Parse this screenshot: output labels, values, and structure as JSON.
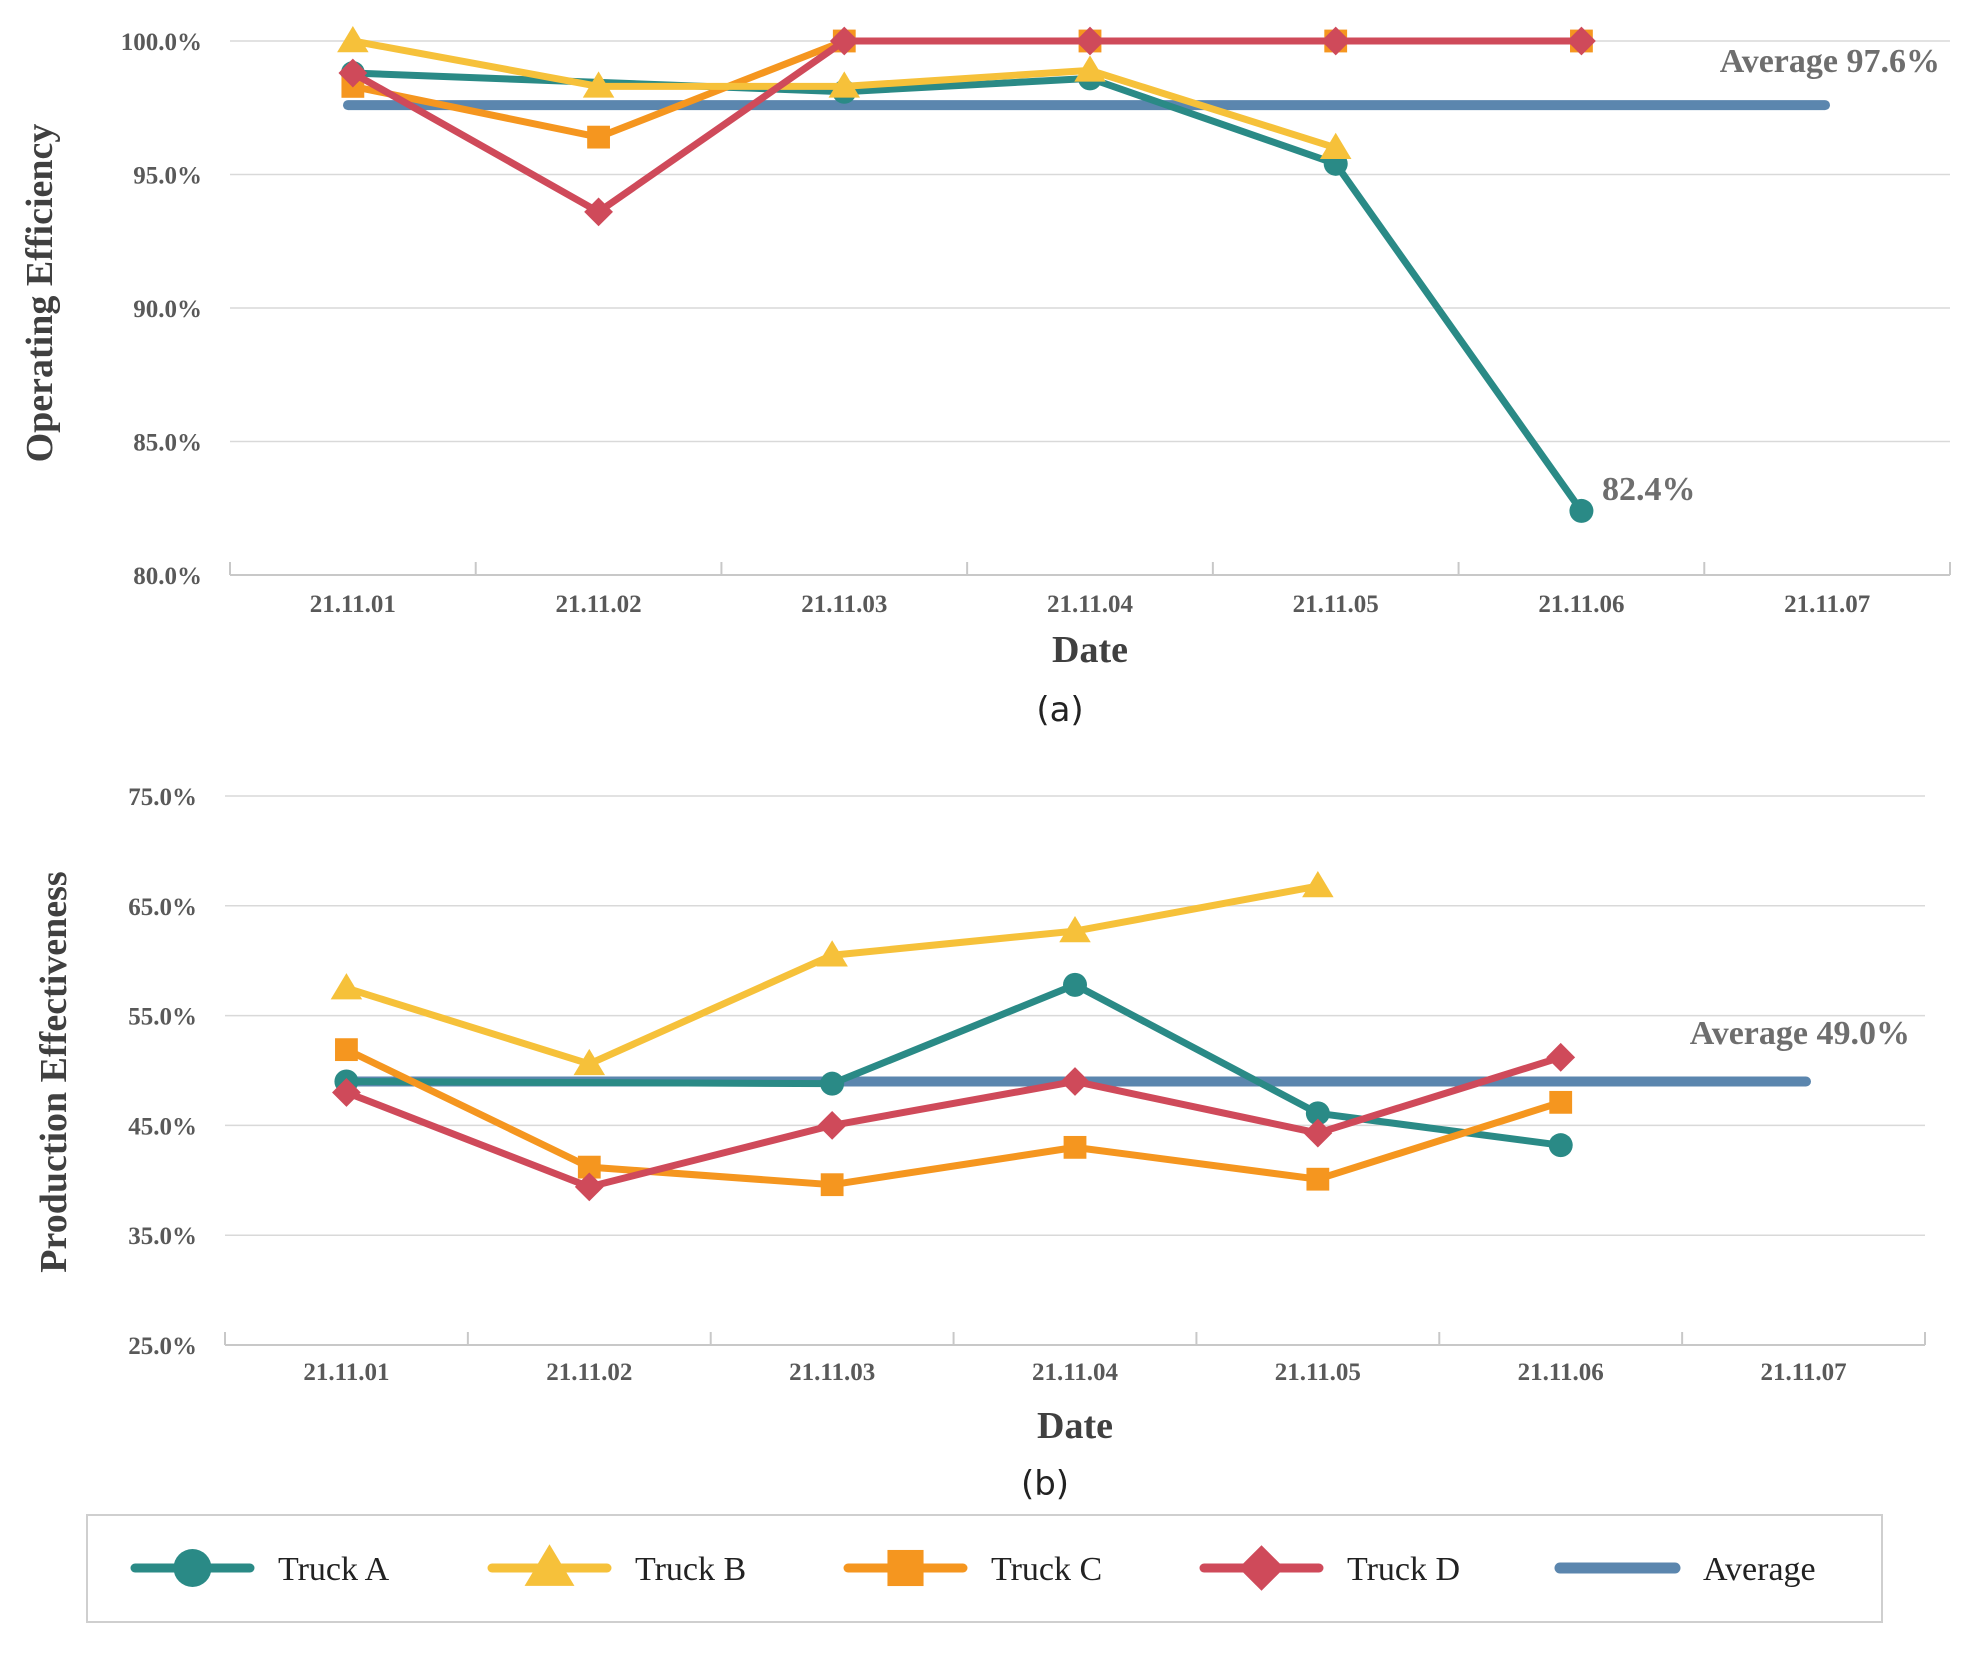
{
  "chart_data": [
    {
      "type": "line",
      "caption": "(a)",
      "xlabel": "Date",
      "ylabel": "Operating Efficiency",
      "categories": [
        "21.11.01",
        "21.11.02",
        "21.11.03",
        "21.11.04",
        "21.11.05",
        "21.11.06",
        "21.11.07"
      ],
      "ylim": [
        80,
        100
      ],
      "yticks": [
        "80.0%",
        "85.0%",
        "90.0%",
        "95.0%",
        "100.0%"
      ],
      "grid": true,
      "series": [
        {
          "name": "Truck A",
          "values": [
            98.8,
            null,
            98.1,
            98.6,
            95.4,
            82.4,
            null
          ]
        },
        {
          "name": "Truck B",
          "values": [
            100.0,
            98.3,
            98.3,
            98.9,
            96.0,
            null,
            null
          ]
        },
        {
          "name": "Truck C",
          "values": [
            98.3,
            96.4,
            100.0,
            100.0,
            100.0,
            100.0,
            null
          ]
        },
        {
          "name": "Truck D",
          "values": [
            98.8,
            93.6,
            100.0,
            100.0,
            100.0,
            100.0,
            null
          ]
        }
      ],
      "average": {
        "name": "Average",
        "value": 97.6
      },
      "annotations": [
        {
          "text": "Average 97.6%"
        },
        {
          "text": "82.4%"
        }
      ]
    },
    {
      "type": "line",
      "caption": "(b)",
      "xlabel": "Date",
      "ylabel": "Production Effectiveness",
      "categories": [
        "21.11.01",
        "21.11.02",
        "21.11.03",
        "21.11.04",
        "21.11.05",
        "21.11.06",
        "21.11.07"
      ],
      "ylim": [
        25,
        75
      ],
      "yticks": [
        "25.0%",
        "35.0%",
        "45.0%",
        "55.0%",
        "65.0%",
        "75.0%"
      ],
      "grid": true,
      "series": [
        {
          "name": "Truck A",
          "values": [
            49.0,
            null,
            48.8,
            57.8,
            46.1,
            43.2,
            null
          ]
        },
        {
          "name": "Truck B",
          "values": [
            57.5,
            50.6,
            60.5,
            62.7,
            66.8,
            null,
            null
          ]
        },
        {
          "name": "Truck C",
          "values": [
            51.9,
            41.2,
            39.6,
            43.0,
            40.1,
            47.1,
            null
          ]
        },
        {
          "name": "Truck D",
          "values": [
            48.0,
            39.4,
            45.0,
            49.0,
            44.3,
            51.2,
            null
          ]
        }
      ],
      "average": {
        "name": "Average",
        "value": 49.0
      },
      "annotations": [
        {
          "text": "Average 49.0%"
        }
      ]
    }
  ],
  "legend": {
    "placement": "bottom",
    "items": [
      {
        "label": "Truck A",
        "color": "#2a8a86",
        "marker": "circle"
      },
      {
        "label": "Truck B",
        "color": "#f6c13a",
        "marker": "triangle"
      },
      {
        "label": "Truck C",
        "color": "#f5961f",
        "marker": "square"
      },
      {
        "label": "Truck D",
        "color": "#cf4a5a",
        "marker": "diamond"
      },
      {
        "label": "Average",
        "color": "#5b86ae",
        "marker": "line"
      }
    ]
  }
}
